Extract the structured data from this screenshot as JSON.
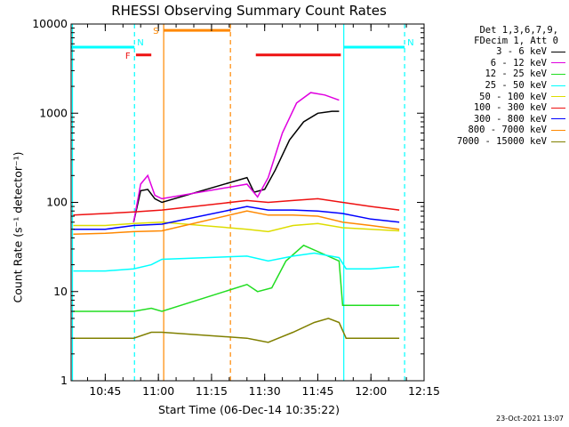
{
  "chart_data": {
    "type": "line",
    "title": "RHESSI Observing Summary Count Rates",
    "xlabel": "Start Time (06-Dec-14 10:35:22)",
    "ylabel": "Count Rate (s⁻¹ detector⁻¹)",
    "yscale": "log",
    "ylim": [
      1,
      10000
    ],
    "xlim": [
      "10:35:22",
      "12:15:00"
    ],
    "x_ticks": [
      "10:45",
      "11:00",
      "11:15",
      "11:30",
      "11:45",
      "12:00",
      "12:15"
    ],
    "y_ticks": [
      "1",
      "10",
      "100",
      "1000",
      "10000"
    ],
    "legend_header": [
      "Det 1,3,6,7,9,",
      "FDecim 1, Att 0"
    ],
    "legend_position": "right",
    "series": [
      {
        "name": "3 - 6 keV",
        "color": "#000000",
        "points": [
          [
            "10:53:00",
            60
          ],
          [
            "10:55:00",
            135
          ],
          [
            "10:57:00",
            140
          ],
          [
            "10:59:00",
            110
          ],
          [
            "11:01:00",
            100
          ],
          [
            "11:25:00",
            190
          ],
          [
            "11:27:00",
            130
          ],
          [
            "11:30:00",
            140
          ],
          [
            "11:33:00",
            230
          ],
          [
            "11:37:00",
            500
          ],
          [
            "11:41:00",
            800
          ],
          [
            "11:45:00",
            1000
          ],
          [
            "11:49:00",
            1050
          ],
          [
            "11:51:00",
            1050
          ]
        ]
      },
      {
        "name": "6 - 12 keV",
        "color": "#e000e0",
        "points": [
          [
            "10:53:00",
            60
          ],
          [
            "10:55:00",
            160
          ],
          [
            "10:57:00",
            200
          ],
          [
            "10:59:00",
            120
          ],
          [
            "11:01:00",
            110
          ],
          [
            "11:25:00",
            160
          ],
          [
            "11:28:00",
            115
          ],
          [
            "11:31:00",
            190
          ],
          [
            "11:35:00",
            600
          ],
          [
            "11:39:00",
            1300
          ],
          [
            "11:43:00",
            1700
          ],
          [
            "11:47:00",
            1600
          ],
          [
            "11:51:00",
            1400
          ]
        ]
      },
      {
        "name": "12 - 25 keV",
        "color": "#22dd22",
        "points": [
          [
            "10:36:00",
            6
          ],
          [
            "10:45:00",
            6
          ],
          [
            "10:53:00",
            6
          ],
          [
            "10:58:00",
            6.5
          ],
          [
            "11:01:00",
            6
          ],
          [
            "11:25:00",
            12
          ],
          [
            "11:28:00",
            10
          ],
          [
            "11:32:00",
            11
          ],
          [
            "11:36:00",
            22
          ],
          [
            "11:41:00",
            33
          ],
          [
            "11:46:00",
            27
          ],
          [
            "11:51:00",
            22
          ],
          [
            "11:52:00",
            7
          ],
          [
            "12:00:00",
            7
          ],
          [
            "12:08:00",
            7
          ]
        ]
      },
      {
        "name": "25 - 50 keV",
        "color": "#00ffff",
        "points": [
          [
            "10:36:00",
            17
          ],
          [
            "10:45:00",
            17
          ],
          [
            "10:53:00",
            18
          ],
          [
            "10:58:00",
            20
          ],
          [
            "11:01:00",
            23
          ],
          [
            "11:25:00",
            25
          ],
          [
            "11:31:00",
            22
          ],
          [
            "11:38:00",
            25
          ],
          [
            "11:44:00",
            27
          ],
          [
            "11:51:00",
            24
          ],
          [
            "11:53:00",
            18
          ],
          [
            "12:00:00",
            18
          ],
          [
            "12:08:00",
            19
          ]
        ]
      },
      {
        "name": "50 - 100 keV",
        "color": "#dddd00",
        "points": [
          [
            "10:36:00",
            55
          ],
          [
            "10:45:00",
            55
          ],
          [
            "10:53:00",
            58
          ],
          [
            "11:01:00",
            60
          ],
          [
            "11:25:00",
            50
          ],
          [
            "11:31:00",
            47
          ],
          [
            "11:38:00",
            55
          ],
          [
            "11:45:00",
            58
          ],
          [
            "11:52:00",
            52
          ],
          [
            "12:00:00",
            50
          ],
          [
            "12:08:00",
            48
          ]
        ]
      },
      {
        "name": "100 - 300 keV",
        "color": "#ee1111",
        "points": [
          [
            "10:36:00",
            72
          ],
          [
            "10:45:00",
            75
          ],
          [
            "10:53:00",
            78
          ],
          [
            "11:01:00",
            82
          ],
          [
            "11:25:00",
            105
          ],
          [
            "11:31:00",
            100
          ],
          [
            "11:38:00",
            105
          ],
          [
            "11:45:00",
            110
          ],
          [
            "11:52:00",
            100
          ],
          [
            "12:00:00",
            90
          ],
          [
            "12:08:00",
            82
          ]
        ]
      },
      {
        "name": "300 - 800 keV",
        "color": "#0000ff",
        "points": [
          [
            "10:36:00",
            50
          ],
          [
            "10:45:00",
            50
          ],
          [
            "10:53:00",
            55
          ],
          [
            "11:01:00",
            57
          ],
          [
            "11:25:00",
            90
          ],
          [
            "11:31:00",
            82
          ],
          [
            "11:38:00",
            82
          ],
          [
            "11:45:00",
            80
          ],
          [
            "11:52:00",
            75
          ],
          [
            "12:00:00",
            65
          ],
          [
            "12:08:00",
            60
          ]
        ]
      },
      {
        "name": "800 - 7000 keV",
        "color": "#ff8800",
        "points": [
          [
            "10:36:00",
            44
          ],
          [
            "10:45:00",
            45
          ],
          [
            "10:53:00",
            47
          ],
          [
            "11:01:00",
            48
          ],
          [
            "11:25:00",
            80
          ],
          [
            "11:31:00",
            72
          ],
          [
            "11:38:00",
            72
          ],
          [
            "11:45:00",
            70
          ],
          [
            "11:52:00",
            60
          ],
          [
            "12:00:00",
            55
          ],
          [
            "12:08:00",
            50
          ]
        ]
      },
      {
        "name": "7000 - 15000 keV",
        "color": "#808000",
        "points": [
          [
            "10:36:00",
            3
          ],
          [
            "10:45:00",
            3
          ],
          [
            "10:53:00",
            3
          ],
          [
            "10:58:00",
            3.5
          ],
          [
            "11:01:00",
            3.5
          ],
          [
            "11:25:00",
            3
          ],
          [
            "11:31:00",
            2.7
          ],
          [
            "11:38:00",
            3.5
          ],
          [
            "11:44:00",
            4.5
          ],
          [
            "11:48:00",
            5
          ],
          [
            "11:51:00",
            4.5
          ],
          [
            "11:53:00",
            3
          ],
          [
            "12:00:00",
            3
          ],
          [
            "12:08:00",
            3
          ]
        ]
      }
    ],
    "state_bars": [
      {
        "label": "N",
        "color": "#00ffff",
        "start": "10:35:22",
        "end": "10:53:15",
        "level": 5500
      },
      {
        "label": "N",
        "color": "#00ffff",
        "start": "11:52:20",
        "end": "12:09:30",
        "level": 5500
      },
      {
        "label": "F",
        "color": "#ee1111",
        "start": "10:53:40",
        "end": "10:58:00",
        "level": 4500
      },
      {
        "label": "",
        "color": "#ee1111",
        "start": "11:27:30",
        "end": "11:51:30",
        "level": 4500
      },
      {
        "label": "S",
        "color": "#ff8800",
        "start": "11:01:30",
        "end": "11:20:20",
        "level": 8500
      }
    ],
    "markers": [
      {
        "time": "10:35:45",
        "color": "#00ffff",
        "style": "solid"
      },
      {
        "time": "10:53:15",
        "color": "#00ffff",
        "style": "dashed"
      },
      {
        "time": "11:01:30",
        "color": "#ff8800",
        "style": "solid"
      },
      {
        "time": "11:20:20",
        "color": "#ff8800",
        "style": "dashed"
      },
      {
        "time": "11:52:20",
        "color": "#00ffff",
        "style": "solid"
      },
      {
        "time": "12:09:30",
        "color": "#00ffff",
        "style": "dashed"
      }
    ]
  },
  "footer_stamp": "23-Oct-2021 13:07"
}
